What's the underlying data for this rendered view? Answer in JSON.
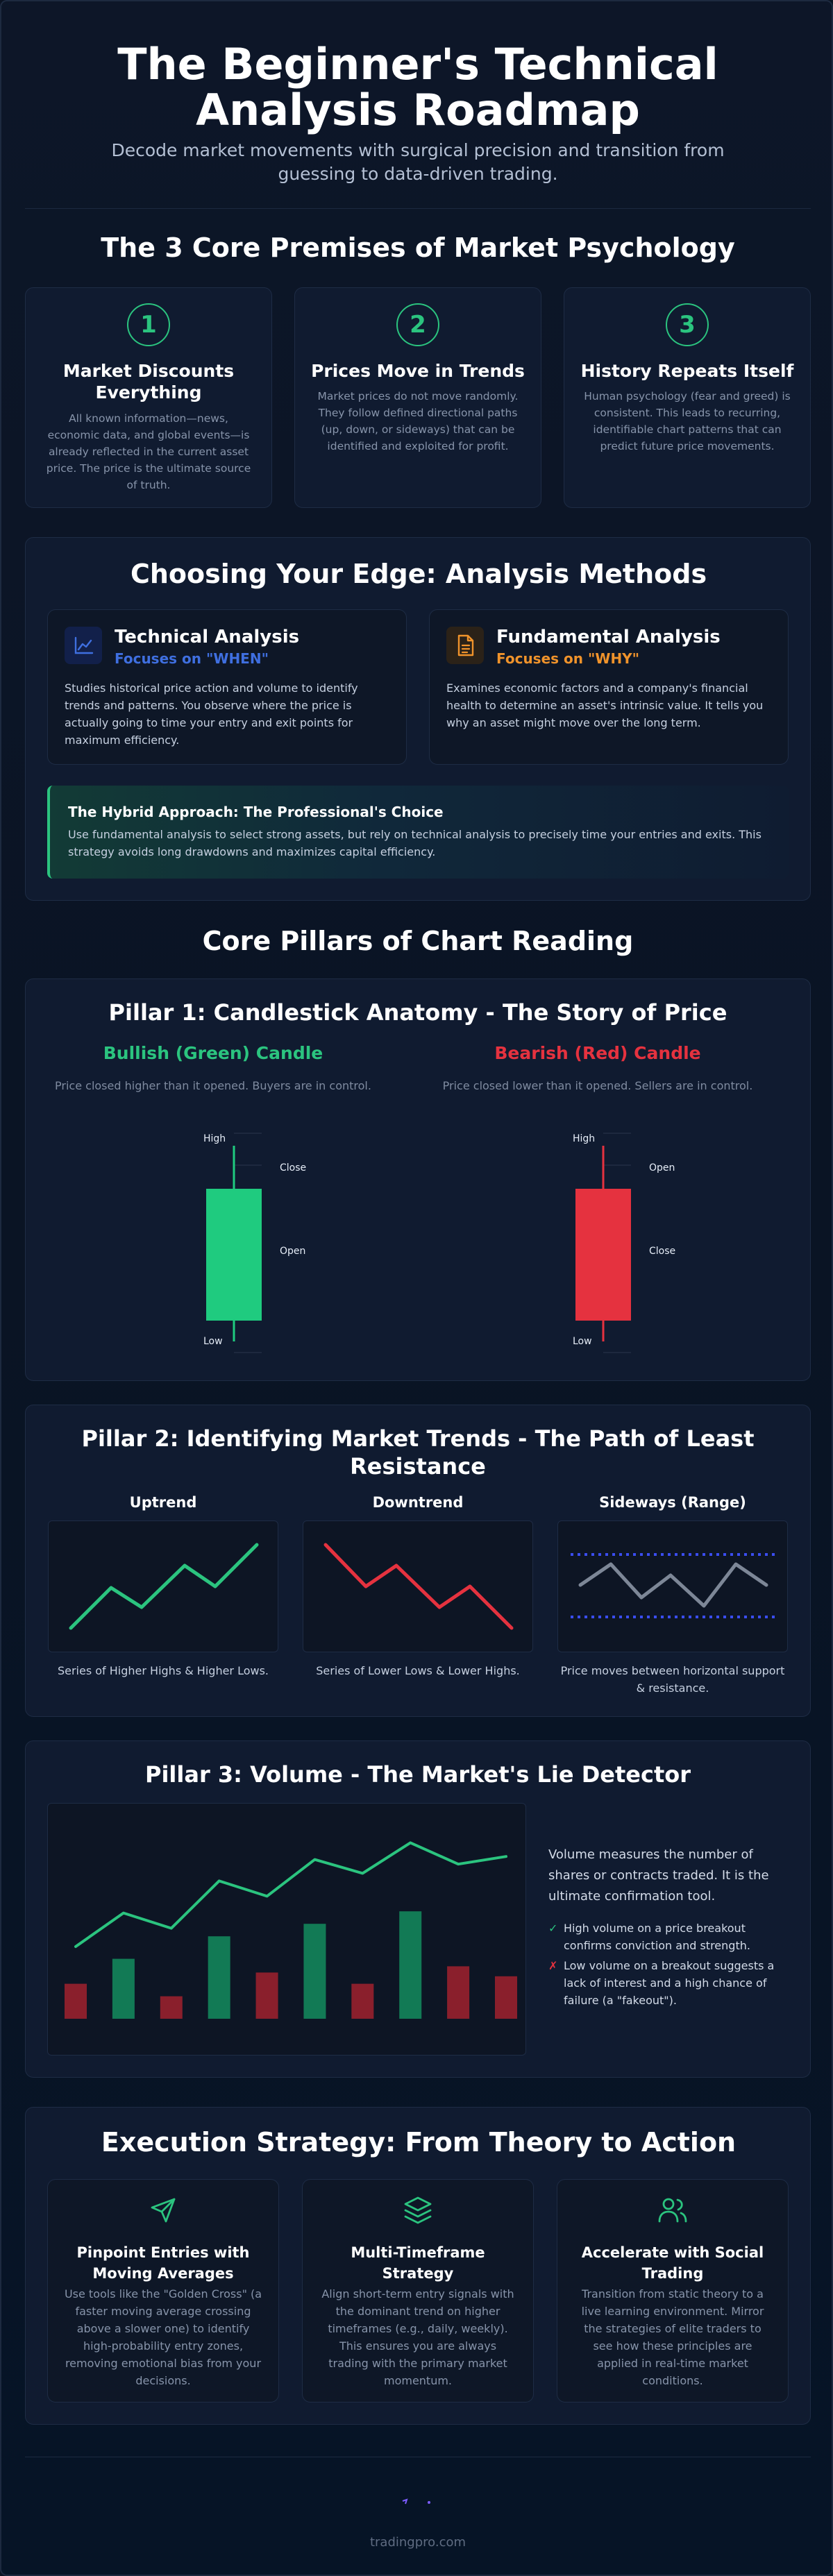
{
  "header": {
    "title_line1": "The Beginner's Technical",
    "title_line2": "Analysis Roadmap",
    "subtitle": "Decode market movements with surgical precision and transition from guessing to data-driven trading."
  },
  "premises": {
    "title": "The 3 Core Premises of Market Psychology",
    "items": [
      {
        "num": "1",
        "title": "Market Discounts Everything",
        "text": "All known information—news, economic data, and global events—is already reflected in the current asset price. The price is the ultimate source of truth."
      },
      {
        "num": "2",
        "title": "Prices Move in Trends",
        "text": "Market prices do not move randomly. They follow defined directional paths (up, down, or sideways) that can be identified and exploited for profit."
      },
      {
        "num": "3",
        "title": "History Repeats Itself",
        "text": "Human psychology (fear and greed) is consistent. This leads to recurring, identifiable chart patterns that can predict future price movements."
      }
    ]
  },
  "methods": {
    "title": "Choosing Your Edge: Analysis Methods",
    "technical": {
      "title": "Technical Analysis",
      "focus": "Focuses on \"WHEN\"",
      "text": "Studies historical price action and volume to identify trends and patterns. You observe where the price is actually going to time your entry and exit points for maximum efficiency.",
      "icon": "chart-line-icon"
    },
    "fundamental": {
      "title": "Fundamental Analysis",
      "focus": "Focuses on \"WHY\"",
      "text": "Examines economic factors and a company's financial health to determine an asset's intrinsic value. It tells you why an asset might move over the long term.",
      "icon": "document-icon"
    },
    "hybrid": {
      "title": "The Hybrid Approach: The Professional's Choice",
      "text": "Use fundamental analysis to select strong assets, but rely on technical analysis to precisely time your entries and exits. This strategy avoids long drawdowns and maximizes capital efficiency."
    }
  },
  "pillars_title": "Core Pillars of Chart Reading",
  "pillar1": {
    "title": "Pillar 1: Candlestick Anatomy - The Story of Price",
    "bullish": {
      "title": "Bullish (Green) Candle",
      "desc": "Price closed higher than it opened. Buyers are in control.",
      "high": "High",
      "close": "Close",
      "open": "Open",
      "low": "Low"
    },
    "bearish": {
      "title": "Bearish (Red) Candle",
      "desc": "Price closed lower than it opened. Sellers are in control.",
      "high": "High",
      "open": "Open",
      "close": "Close",
      "low": "Low"
    }
  },
  "pillar2": {
    "title_line1": "Pillar 2: Identifying Market Trends - The Path of Least",
    "title_line2": "Resistance",
    "trends": [
      {
        "name": "Uptrend",
        "desc": "Series of Higher Highs & Higher Lows."
      },
      {
        "name": "Downtrend",
        "desc": "Series of Lower Lows & Lower Highs."
      },
      {
        "name": "Sideways (Range)",
        "desc": "Price moves between horizontal support & resistance."
      }
    ]
  },
  "pillar3": {
    "title": "Pillar 3: Volume - The Market's Lie Detector",
    "intro": "Volume measures the number of shares or contracts traded. It is the ultimate confirmation tool.",
    "points": [
      {
        "mark": "✓",
        "text": "High volume on a price breakout confirms conviction and strength."
      },
      {
        "mark": "✗",
        "text": "Low volume on a breakout suggests a lack of interest and a high chance of failure (a \"fakeout\")."
      }
    ],
    "chart_data": {
      "type": "bar",
      "price_line": [
        0.2,
        0.42,
        0.32,
        0.63,
        0.53,
        0.77,
        0.68,
        0.88,
        0.74,
        0.79
      ],
      "volume_bars": [
        0.28,
        0.48,
        0.18,
        0.66,
        0.37,
        0.76,
        0.28,
        0.86,
        0.42,
        0.34
      ],
      "bar_colors": [
        "#8a1f2c",
        "#127a55",
        "#8a1f2c",
        "#127a55",
        "#8a1f2c",
        "#127a55",
        "#8a1f2c",
        "#127a55",
        "#8a1f2c",
        "#8a1f2c"
      ],
      "line_color": "#2bc47f"
    }
  },
  "execution": {
    "title": "Execution Strategy: From Theory to Action",
    "items": [
      {
        "icon": "send-icon",
        "title": "Pinpoint Entries with Moving Averages",
        "text": "Use tools like the \"Golden Cross\" (a faster moving average crossing above a slower one) to identify high-probability entry zones, removing emotional bias from your decisions."
      },
      {
        "icon": "layers-icon",
        "title": "Multi-Timeframe Strategy",
        "text": "Align short-term entry signals with the dominant trend on higher timeframes (e.g., daily, weekly). This ensures you are always trading with the primary market momentum."
      },
      {
        "icon": "users-icon",
        "title": "Accelerate with Social Trading",
        "text": "Transition from static theory to a live learning environment. Mirror the strategies of elite traders to see how these principles are applied in real-time market conditions."
      }
    ]
  },
  "footer": {
    "site": "tradingpro.com"
  },
  "colors": {
    "green": "#2bc47f",
    "red": "#e5323f",
    "blue": "#3f6fe0",
    "orange": "#f0932b"
  }
}
